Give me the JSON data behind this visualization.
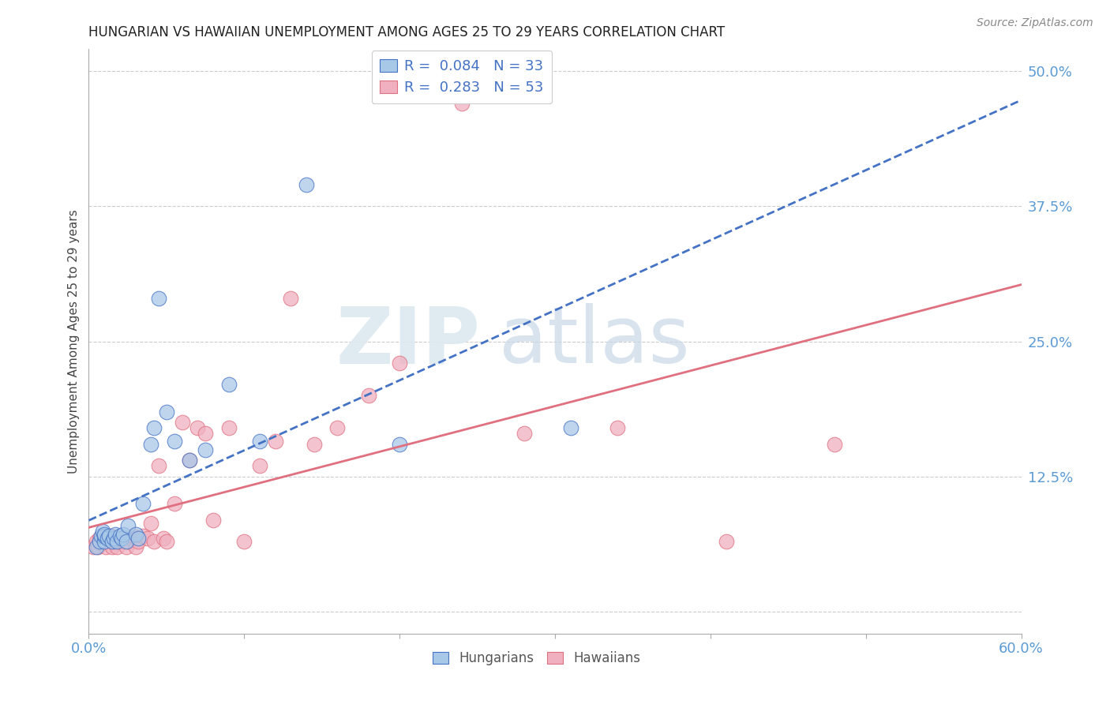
{
  "title": "HUNGARIAN VS HAWAIIAN UNEMPLOYMENT AMONG AGES 25 TO 29 YEARS CORRELATION CHART",
  "source": "Source: ZipAtlas.com",
  "ylabel": "Unemployment Among Ages 25 to 29 years",
  "xlim": [
    0.0,
    0.6
  ],
  "ylim": [
    -0.02,
    0.52
  ],
  "yticks": [
    0.0,
    0.125,
    0.25,
    0.375,
    0.5
  ],
  "ytick_labels": [
    "",
    "12.5%",
    "25.0%",
    "37.5%",
    "50.0%"
  ],
  "background_color": "#ffffff",
  "grid_color": "#cccccc",
  "hungarian_color": "#a8c8e8",
  "hawaiian_color": "#f0b0c0",
  "hungarian_line_color": "#4472c4",
  "hawaiian_line_color": "#e07080",
  "legend_entry1": "R =  0.084   N = 33",
  "legend_entry2": "R =  0.283   N = 53",
  "hungarian_x": [
    0.005,
    0.007,
    0.008,
    0.009,
    0.01,
    0.01,
    0.01,
    0.012,
    0.013,
    0.015,
    0.016,
    0.017,
    0.018,
    0.02,
    0.021,
    0.022,
    0.024,
    0.025,
    0.03,
    0.032,
    0.035,
    0.04,
    0.042,
    0.045,
    0.05,
    0.055,
    0.065,
    0.075,
    0.09,
    0.11,
    0.14,
    0.2,
    0.31
  ],
  "hungarian_y": [
    0.06,
    0.065,
    0.07,
    0.075,
    0.065,
    0.07,
    0.072,
    0.068,
    0.07,
    0.065,
    0.068,
    0.072,
    0.065,
    0.07,
    0.068,
    0.072,
    0.065,
    0.08,
    0.072,
    0.068,
    0.1,
    0.155,
    0.17,
    0.29,
    0.185,
    0.158,
    0.14,
    0.15,
    0.21,
    0.158,
    0.395,
    0.155,
    0.17
  ],
  "hawaiian_x": [
    0.003,
    0.005,
    0.006,
    0.007,
    0.008,
    0.009,
    0.01,
    0.011,
    0.012,
    0.013,
    0.014,
    0.015,
    0.016,
    0.017,
    0.018,
    0.019,
    0.02,
    0.021,
    0.022,
    0.023,
    0.024,
    0.025,
    0.027,
    0.028,
    0.03,
    0.032,
    0.035,
    0.038,
    0.04,
    0.042,
    0.045,
    0.048,
    0.05,
    0.055,
    0.06,
    0.065,
    0.07,
    0.075,
    0.08,
    0.09,
    0.1,
    0.11,
    0.12,
    0.13,
    0.145,
    0.16,
    0.18,
    0.2,
    0.24,
    0.28,
    0.34,
    0.41,
    0.48
  ],
  "hawaiian_y": [
    0.06,
    0.065,
    0.06,
    0.068,
    0.065,
    0.07,
    0.065,
    0.06,
    0.068,
    0.065,
    0.07,
    0.06,
    0.065,
    0.068,
    0.06,
    0.065,
    0.07,
    0.068,
    0.065,
    0.068,
    0.06,
    0.065,
    0.068,
    0.07,
    0.06,
    0.065,
    0.07,
    0.068,
    0.082,
    0.065,
    0.135,
    0.068,
    0.065,
    0.1,
    0.175,
    0.14,
    0.17,
    0.165,
    0.085,
    0.17,
    0.065,
    0.135,
    0.158,
    0.29,
    0.155,
    0.17,
    0.2,
    0.23,
    0.47,
    0.165,
    0.17,
    0.065,
    0.155
  ]
}
